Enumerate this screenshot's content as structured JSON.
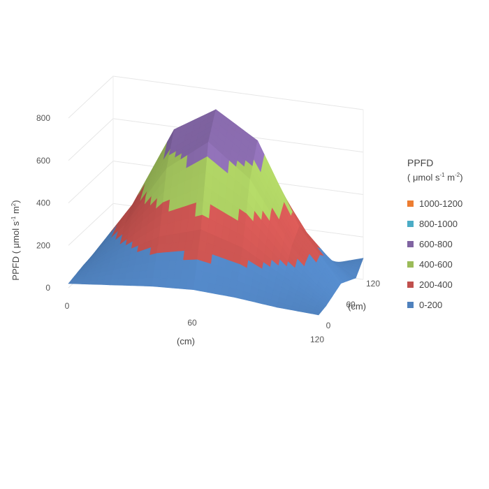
{
  "chart_data": {
    "type": "surface",
    "x": [
      0,
      20,
      40,
      60,
      80,
      100,
      120
    ],
    "y": [
      0,
      20,
      40,
      60,
      80,
      100,
      120
    ],
    "z_matrix": [
      [
        20,
        30,
        40,
        45,
        40,
        30,
        20
      ],
      [
        40,
        150,
        260,
        320,
        260,
        150,
        40
      ],
      [
        60,
        260,
        550,
        700,
        550,
        260,
        60
      ],
      [
        70,
        320,
        700,
        820,
        700,
        320,
        70
      ],
      [
        60,
        260,
        550,
        700,
        550,
        260,
        60
      ],
      [
        40,
        150,
        260,
        320,
        260,
        150,
        40
      ],
      [
        30,
        40,
        60,
        80,
        60,
        40,
        100
      ]
    ],
    "x_ticks": [
      "0",
      "60",
      "120"
    ],
    "y_ticks": [
      "0",
      "60",
      "120"
    ],
    "z_ticks": [
      "0",
      "200",
      "400",
      "600",
      "800"
    ],
    "zlim": [
      0,
      800
    ],
    "xlabel": "(cm)",
    "ylabel": "(cm)",
    "zlabel_main": "PPFD ( μmol s",
    "zlabel_sup1": "-1",
    "zlabel_mid": " m",
    "zlabel_sup2": "2",
    "zlabel_end": ")",
    "grid": true,
    "legend_placement": "right",
    "legend": {
      "title": "PPFD",
      "units_main": "( μmol s",
      "units_sup1": "-1",
      "units_mid": " m",
      "units_sup2": "-2",
      "units_end": ")",
      "items": [
        {
          "label": "1000-1200",
          "color": "#ED7D31",
          "min": 1000,
          "max": 1200
        },
        {
          "label": "800-1000",
          "color": "#4BACC6",
          "min": 800,
          "max": 1000
        },
        {
          "label": "600-800",
          "color": "#8064A2",
          "min": 600,
          "max": 800
        },
        {
          "label": "400-600",
          "color": "#9BBB59",
          "min": 400,
          "max": 600
        },
        {
          "label": "200-400",
          "color": "#C0504D",
          "min": 200,
          "max": 400
        },
        {
          "label": "0-200",
          "color": "#4F81BD",
          "min": 0,
          "max": 200
        }
      ]
    }
  }
}
